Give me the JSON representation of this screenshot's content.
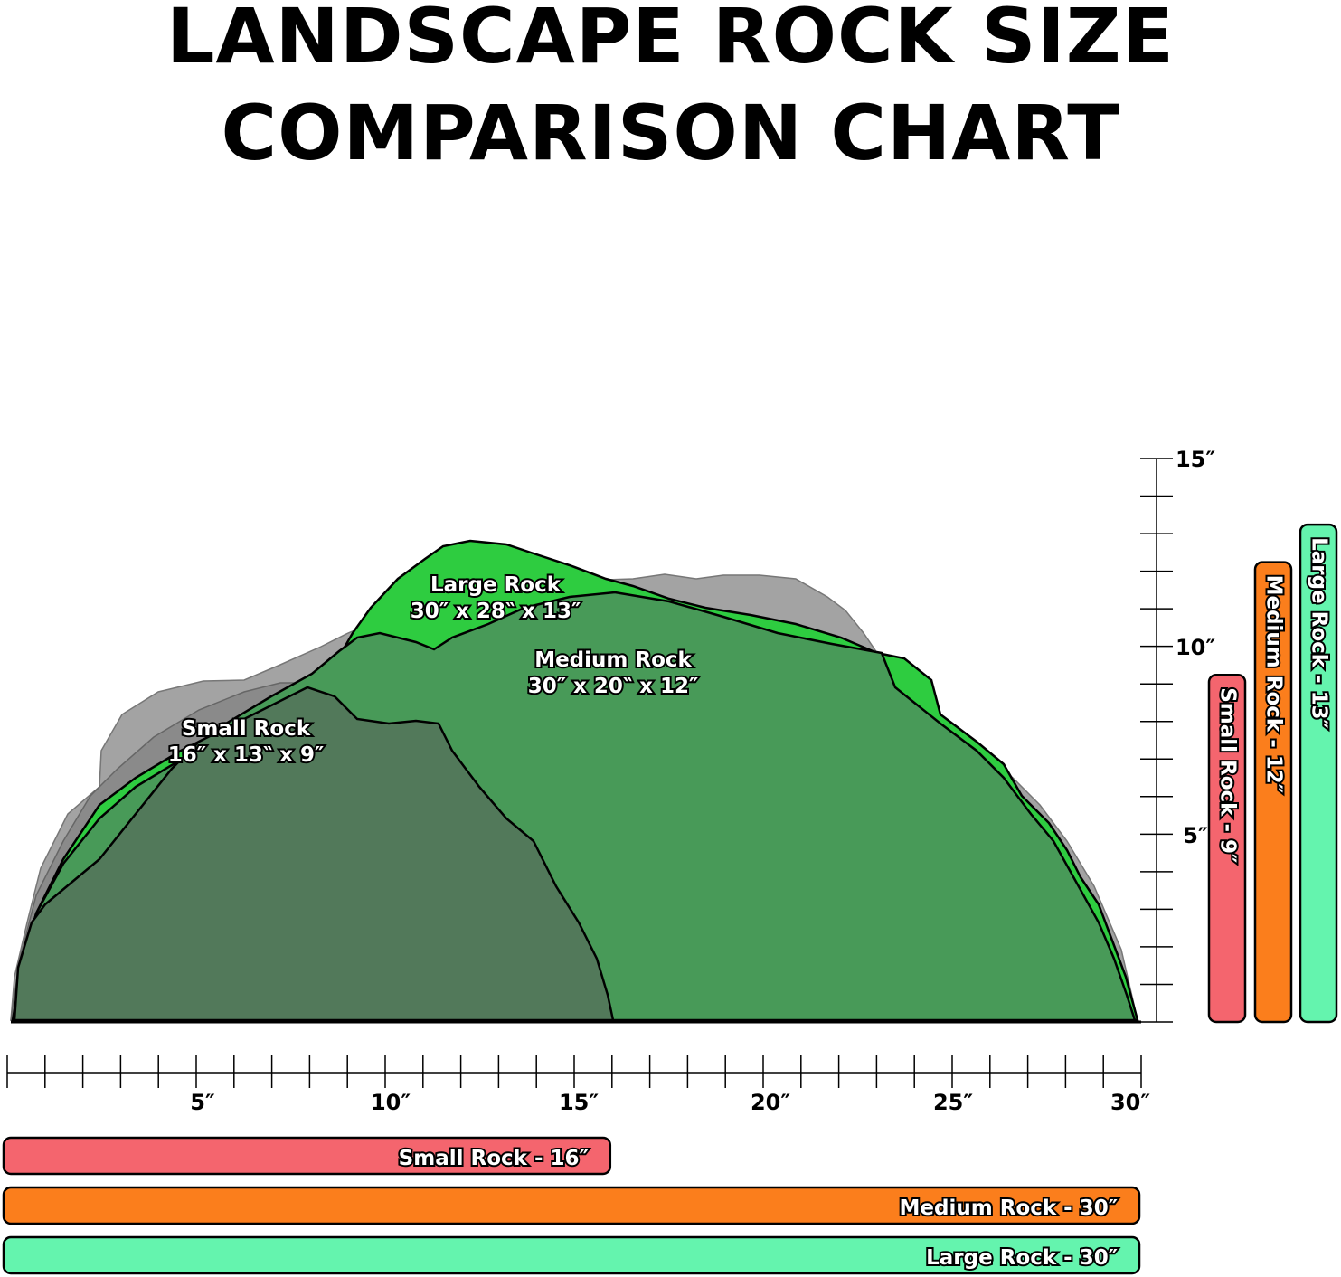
{
  "title": {
    "line1": "LANDSCAPE ROCK SIZE",
    "line2": "COMPARISON CHART"
  },
  "rocks": [
    {
      "key": "large",
      "name": "Large Rock",
      "dims": "30″ x 28‶ x 13″",
      "length_in": 30,
      "height_in": 13,
      "length_label": "Large Rock - 30″",
      "height_label": "Large Rock - 13″",
      "fill": "#2ecc40",
      "bar_color": "#64f4ae"
    },
    {
      "key": "medium",
      "name": "Medium Rock",
      "dims": "30″ x 20‶ x 12″",
      "length_in": 30,
      "height_in": 12,
      "length_label": "Medium Rock - 30″",
      "height_label": "Medium Rock - 12″",
      "fill": "#4a9a5a",
      "bar_color": "#fb7e1c"
    },
    {
      "key": "small",
      "name": "Small Rock",
      "dims": "16″ x 13‶ x 9″",
      "length_in": 16,
      "height_in": 9,
      "length_label": "Small Rock - 16″",
      "height_label": "Small Rock - 9″",
      "fill": "#4f7a5a",
      "bar_color": "#f4656e"
    }
  ],
  "shadow_fill": "#9a9a9a",
  "x_axis": {
    "max_in": 30,
    "labels": [
      "5″",
      "10″",
      "15″",
      "20″",
      "25″",
      "30″"
    ]
  },
  "y_axis": {
    "max_in": 15,
    "labels": [
      "5″",
      "10″",
      "15″"
    ]
  }
}
